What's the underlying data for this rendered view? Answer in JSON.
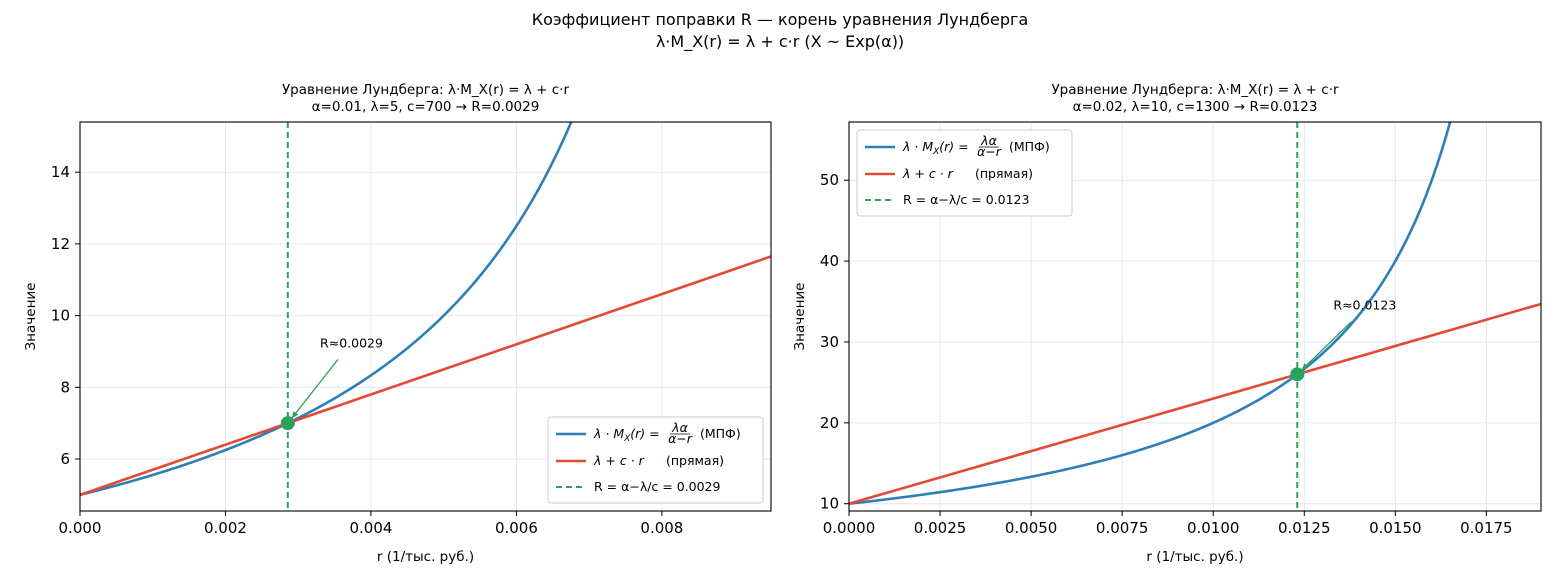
{
  "figure": {
    "suptitle_line1": "Коэффициент поправки R — корень уравнения Лундберга",
    "suptitle_line2": "λ·M_X(r) = λ + c·r  (X ~ Exp(α))"
  },
  "colors": {
    "mgf": "#2c7fb8",
    "line": "#e34a33",
    "root": "#2ca25f",
    "grid": "#e6e6e6"
  },
  "chart_data": [
    {
      "type": "line",
      "title_line1": "Уравнение Лундберга: λ·M_X(r) = λ + c·r",
      "title_line2": "α=0.01, λ=5, c=700  →  R=0.0029",
      "xlabel": "r (1/тыс. руб.)",
      "ylabel": "Значение",
      "xlim": [
        0,
        0.0095
      ],
      "ylim": [
        4.55,
        15.4
      ],
      "xticks": [
        0,
        0.002,
        0.004,
        0.006,
        0.008
      ],
      "xtick_labels": [
        "0.000",
        "0.002",
        "0.004",
        "0.006",
        "0.008"
      ],
      "yticks": [
        6,
        8,
        10,
        12,
        14
      ],
      "ytick_labels": [
        "6",
        "8",
        "10",
        "12",
        "14"
      ],
      "grid": true,
      "legend_position": "lower-right",
      "params": {
        "alpha": 0.01,
        "lambda": 5,
        "c": 700
      },
      "series": [
        {
          "name": "λ·M_X(r) = λα/(α−r)  (МПФ)",
          "legend_math": "λ · M",
          "legend_sub": "X",
          "legend_arg": "(r) =",
          "legend_num": "λα",
          "legend_den": "α−r",
          "legend_tail": "(МПФ)",
          "x": [
            0,
            0.001,
            0.002,
            0.003,
            0.004,
            0.005,
            0.006,
            0.0065,
            0.0067
          ],
          "y": [
            5.0,
            5.556,
            6.25,
            7.143,
            8.333,
            10.0,
            12.5,
            14.286,
            15.152
          ]
        },
        {
          "name": "λ + c · r  (прямая)",
          "legend_math": "λ + c · r",
          "legend_tail": "(прямая)",
          "x": [
            0,
            0.0095
          ],
          "y": [
            5.0,
            11.65
          ]
        }
      ],
      "root": {
        "legend_label": "R = α−λ/c = 0.0029",
        "x": 0.002857,
        "y": 7.0,
        "annotation": "R≈0.0029",
        "annotation_x": 0.0033,
        "annotation_y": 9.0
      }
    },
    {
      "type": "line",
      "title_line1": "Уравнение Лундберга: λ·M_X(r) = λ + c·r",
      "title_line2": "α=0.02, λ=10, c=1300  →  R=0.0123",
      "xlabel": "r (1/тыс. руб.)",
      "ylabel": "Значение",
      "xlim": [
        0,
        0.019
      ],
      "ylim": [
        9.1,
        57.2
      ],
      "xticks": [
        0,
        0.0025,
        0.005,
        0.0075,
        0.01,
        0.0125,
        0.015,
        0.0175
      ],
      "xtick_labels": [
        "0.0000",
        "0.0025",
        "0.0050",
        "0.0075",
        "0.0100",
        "0.0125",
        "0.0150",
        "0.0175"
      ],
      "yticks": [
        10,
        20,
        30,
        40,
        50
      ],
      "ytick_labels": [
        "10",
        "20",
        "30",
        "40",
        "50"
      ],
      "grid": true,
      "legend_position": "upper-left",
      "params": {
        "alpha": 0.02,
        "lambda": 10,
        "c": 1300
      },
      "series": [
        {
          "name": "λ·M_X(r) = λα/(α−r)  (МПФ)",
          "legend_math": "λ · M",
          "legend_sub": "X",
          "legend_arg": "(r) =",
          "legend_num": "λα",
          "legend_den": "α−r",
          "legend_tail": "(МПФ)",
          "x": [
            0,
            0.0025,
            0.005,
            0.0075,
            0.01,
            0.0125,
            0.015,
            0.016,
            0.0164
          ],
          "y": [
            10.0,
            11.43,
            13.33,
            16.0,
            20.0,
            26.67,
            40.0,
            50.0,
            55.56
          ]
        },
        {
          "name": "λ + c · r  (прямая)",
          "legend_math": "λ + c · r",
          "legend_tail": "(прямая)",
          "x": [
            0,
            0.019
          ],
          "y": [
            10.0,
            34.7
          ]
        }
      ],
      "root": {
        "legend_label": "R = α−λ/c = 0.0123",
        "x": 0.012308,
        "y": 26.0,
        "annotation": "R≈0.0123",
        "annotation_x": 0.0133,
        "annotation_y": 33.5
      }
    }
  ]
}
